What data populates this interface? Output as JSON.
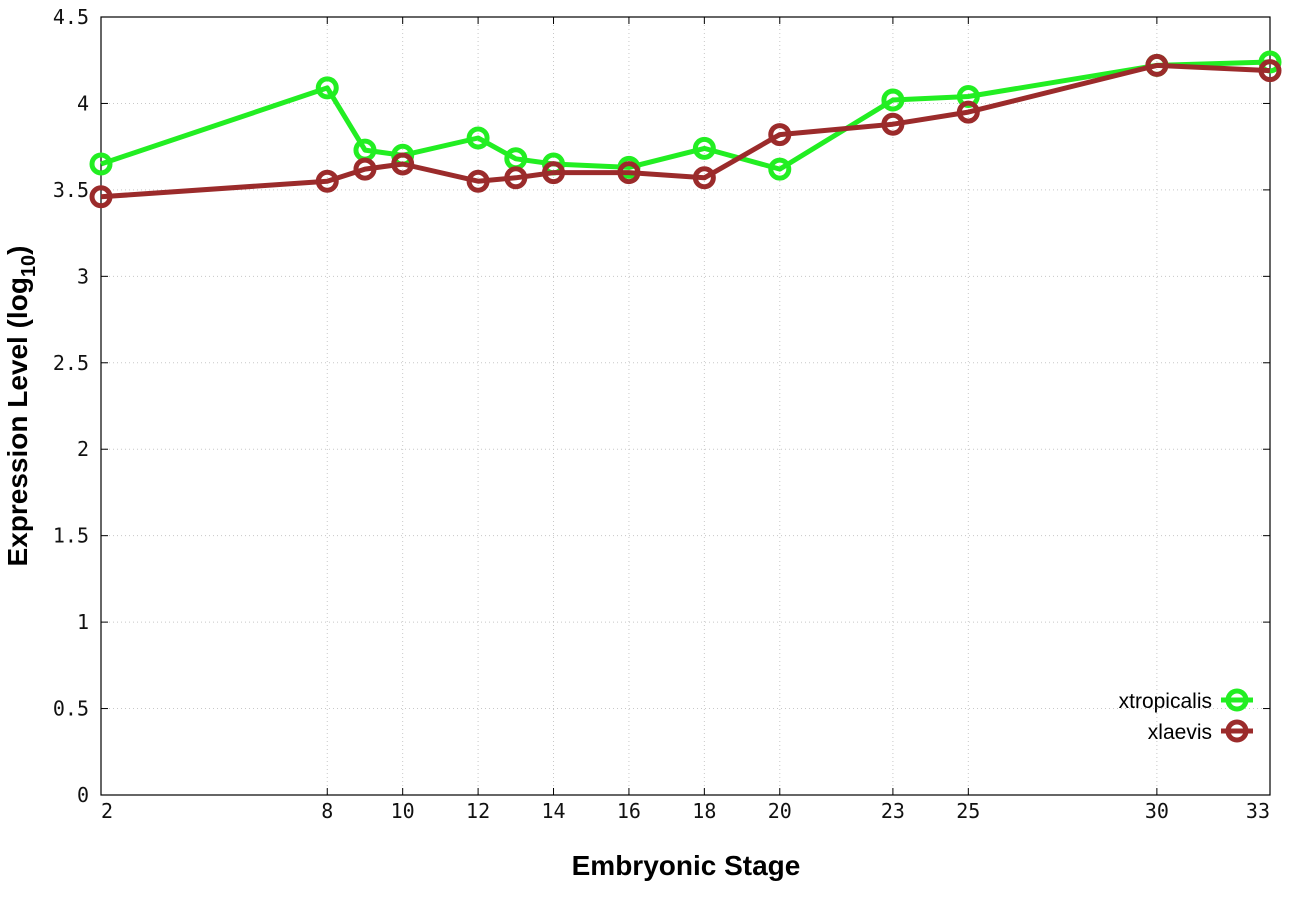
{
  "chart_data": {
    "type": "line",
    "xlabel": "Embryonic Stage",
    "ylabel_main": "Expression Level (log",
    "ylabel_sub": "10",
    "ylabel_close": ")",
    "ylim": [
      0,
      4.5
    ],
    "xlim": [
      2,
      33
    ],
    "x_ticks": [
      2,
      8,
      10,
      12,
      14,
      16,
      18,
      20,
      23,
      25,
      30,
      33
    ],
    "y_ticks": [
      "0",
      "0.5",
      "1",
      "1.5",
      "2",
      "2.5",
      "3",
      "3.5",
      "4",
      "4.5"
    ],
    "grid": true,
    "legend_position": "bottom-right",
    "series": [
      {
        "name": "xtropicalis",
        "color": "#22ee22",
        "x": [
          2,
          8,
          9,
          10,
          12,
          13,
          14,
          16,
          18,
          20,
          23,
          25,
          30,
          33
        ],
        "y": [
          3.65,
          4.09,
          3.73,
          3.7,
          3.8,
          3.68,
          3.65,
          3.63,
          3.74,
          3.62,
          4.02,
          4.04,
          4.22,
          4.24
        ]
      },
      {
        "name": "xlaevis",
        "color": "#9b2b2b",
        "x": [
          2,
          8,
          9,
          10,
          12,
          13,
          14,
          16,
          18,
          20,
          23,
          25,
          30,
          33
        ],
        "y": [
          3.46,
          3.55,
          3.62,
          3.65,
          3.55,
          3.57,
          3.6,
          3.6,
          3.57,
          3.82,
          3.88,
          3.95,
          4.22,
          4.19
        ]
      }
    ]
  }
}
